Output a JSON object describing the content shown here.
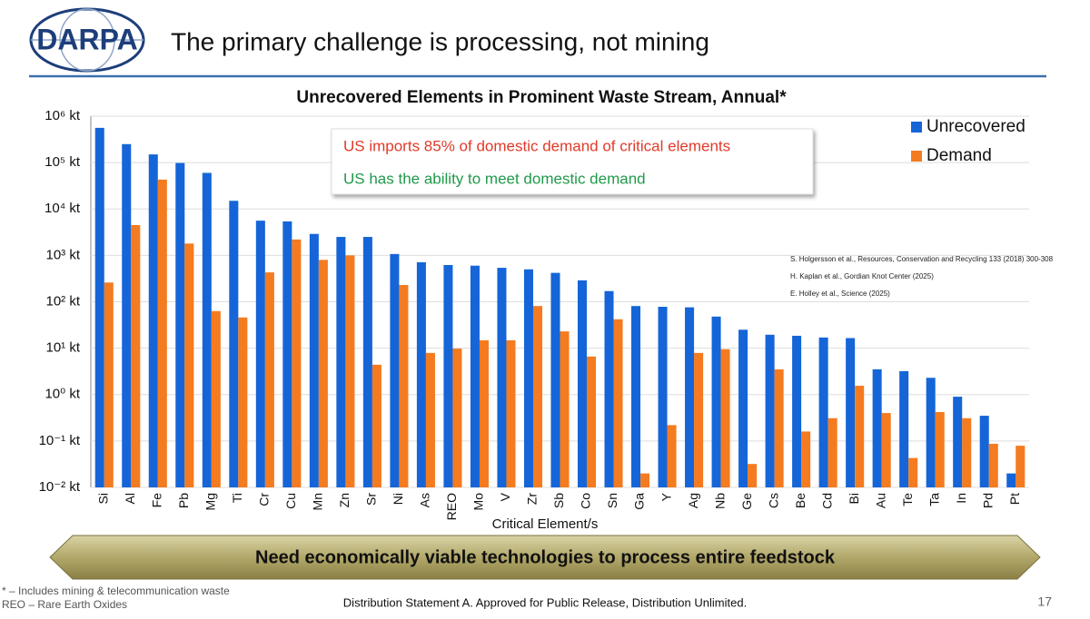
{
  "slide": {
    "logo": "DARPA",
    "title": "The primary challenge is processing, not mining",
    "banner": "Need economically viable technologies to process entire feedstock",
    "footnotes": [
      "* – Includes mining & telecommunication waste",
      "REO – Rare Earth Oxides"
    ],
    "distribution": "Distribution Statement A. Approved for Public Release, Distribution Unlimited.",
    "page_number": "17"
  },
  "chart_data": {
    "type": "bar",
    "title": "Unrecovered Elements in Prominent Waste Stream, Annual*",
    "x_label": "Critical Element/s",
    "log_scale": true,
    "grid": true,
    "legend": "top-right",
    "annotations": [
      {
        "text": "US imports 85% of domestic demand of critical elements",
        "color": "#e03a2a"
      },
      {
        "text": "US has the ability to meet domestic demand",
        "color": "#1f9a4a"
      }
    ],
    "references": [
      "S. Holgersson et al., Resources, Conservation and Recycling 133 (2018) 300-308",
      "H. Kaplan et al., Gordian Knot Center (2025)",
      "E. Holley et al., Science (2025)"
    ],
    "categories": [
      "Si",
      "Al",
      "Fe",
      "Pb",
      "Mg",
      "Ti",
      "Cr",
      "Cu",
      "Mn",
      "Zn",
      "Sr",
      "Ni",
      "As",
      "REO",
      "Mo",
      "V",
      "Zr",
      "Sb",
      "Co",
      "Sn",
      "Ga",
      "Y",
      "Ag",
      "Nb",
      "Ge",
      "Cs",
      "Be",
      "Cd",
      "Bi",
      "Au",
      "Te",
      "Ta",
      "In",
      "Pd",
      "Pt"
    ],
    "series": [
      {
        "name": "Unrecovered",
        "color": "#1565d8",
        "values": [
          560000,
          250000,
          150000,
          98000,
          60000,
          15000,
          5600,
          5400,
          2900,
          2500,
          2500,
          1070,
          710,
          620,
          600,
          540,
          500,
          420,
          290,
          170,
          81,
          78,
          76,
          48,
          25,
          19.5,
          18.5,
          17,
          16.5,
          3.5,
          3.2,
          2.3,
          0.9,
          0.35,
          0.02
        ]
      },
      {
        "name": "Demand",
        "color": "#f47b20",
        "values": [
          260,
          4500,
          43000,
          1800,
          63,
          46,
          430,
          2200,
          800,
          1000,
          4.4,
          230,
          7.9,
          9.8,
          14.8,
          14.8,
          81,
          23,
          6.6,
          42,
          0.02,
          0.22,
          7.9,
          9.5,
          0.032,
          3.5,
          0.16,
          0.31,
          1.55,
          0.4,
          0.043,
          0.42,
          0.31,
          0.087,
          0.079
        ]
      }
    ],
    "ylim": [
      0.01,
      1000000
    ],
    "yticks": [
      {
        "value": 1000000,
        "label": "10⁶ kt"
      },
      {
        "value": 100000,
        "label": "10⁵ kt"
      },
      {
        "value": 10000,
        "label": "10⁴ kt"
      },
      {
        "value": 1000,
        "label": "10³ kt"
      },
      {
        "value": 100,
        "label": "10² kt"
      },
      {
        "value": 10,
        "label": "10¹ kt"
      },
      {
        "value": 1,
        "label": "10⁰ kt"
      },
      {
        "value": 0.1,
        "label": "10⁻¹ kt"
      },
      {
        "value": 0.01,
        "label": "10⁻² kt"
      }
    ]
  }
}
